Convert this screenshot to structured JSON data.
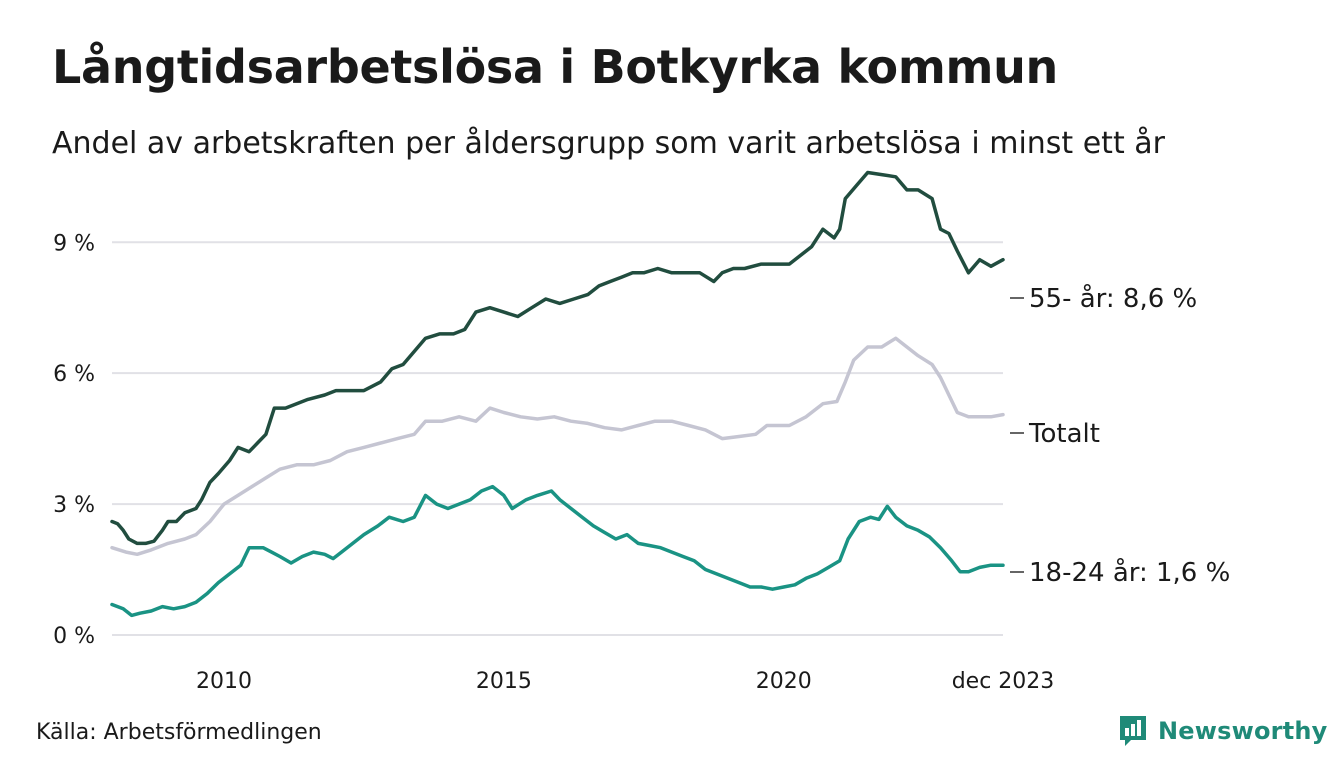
{
  "header": {
    "title": "Långtidsarbetslösa i Botkyrka kommun",
    "subtitle": "Andel av arbetskraften per åldersgrupp som varit arbetslösa i minst ett år"
  },
  "footer": {
    "source": "Källa: Arbetsförmedlingen",
    "brand": "Newsworthy"
  },
  "chart_data": {
    "type": "line",
    "title": "Långtidsarbetslösa i Botkyrka kommun",
    "subtitle": "Andel av arbetskraften per åldersgrupp som varit arbetslösa i minst ett år",
    "x_range": [
      2008.0,
      2023.917
    ],
    "xticks": [
      {
        "value": 2010,
        "label": "2010"
      },
      {
        "value": 2015,
        "label": "2015"
      },
      {
        "value": 2020,
        "label": "2020"
      },
      {
        "value": 2023.917,
        "label": "dec 2023"
      }
    ],
    "ylim": [
      0,
      11
    ],
    "yticks": [
      {
        "value": 0,
        "label": "0 %"
      },
      {
        "value": 3,
        "label": "3 %"
      },
      {
        "value": 6,
        "label": "6 %"
      },
      {
        "value": 9,
        "label": "9 %"
      }
    ],
    "grid": true,
    "series": [
      {
        "name": "55- år",
        "label": "55- år: 8,6 %",
        "color": "#214d3f",
        "points": [
          [
            2008.0,
            2.6
          ],
          [
            2008.1,
            2.55
          ],
          [
            2008.2,
            2.4
          ],
          [
            2008.3,
            2.2
          ],
          [
            2008.45,
            2.1
          ],
          [
            2008.6,
            2.1
          ],
          [
            2008.75,
            2.15
          ],
          [
            2008.9,
            2.4
          ],
          [
            2009.0,
            2.6
          ],
          [
            2009.15,
            2.6
          ],
          [
            2009.3,
            2.8
          ],
          [
            2009.5,
            2.9
          ],
          [
            2009.6,
            3.1
          ],
          [
            2009.75,
            3.5
          ],
          [
            2009.9,
            3.7
          ],
          [
            2010.1,
            4.0
          ],
          [
            2010.25,
            4.3
          ],
          [
            2010.45,
            4.2
          ],
          [
            2010.6,
            4.4
          ],
          [
            2010.75,
            4.6
          ],
          [
            2010.9,
            5.2
          ],
          [
            2011.1,
            5.2
          ],
          [
            2011.3,
            5.3
          ],
          [
            2011.5,
            5.4
          ],
          [
            2011.8,
            5.5
          ],
          [
            2012.0,
            5.6
          ],
          [
            2012.2,
            5.6
          ],
          [
            2012.5,
            5.6
          ],
          [
            2012.8,
            5.8
          ],
          [
            2013.0,
            6.1
          ],
          [
            2013.2,
            6.2
          ],
          [
            2013.4,
            6.5
          ],
          [
            2013.6,
            6.8
          ],
          [
            2013.85,
            6.9
          ],
          [
            2014.1,
            6.9
          ],
          [
            2014.3,
            7.0
          ],
          [
            2014.5,
            7.4
          ],
          [
            2014.75,
            7.5
          ],
          [
            2015.0,
            7.4
          ],
          [
            2015.25,
            7.3
          ],
          [
            2015.5,
            7.5
          ],
          [
            2015.75,
            7.7
          ],
          [
            2016.0,
            7.6
          ],
          [
            2016.25,
            7.7
          ],
          [
            2016.5,
            7.8
          ],
          [
            2016.7,
            8.0
          ],
          [
            2016.9,
            8.1
          ],
          [
            2017.1,
            8.2
          ],
          [
            2017.3,
            8.3
          ],
          [
            2017.5,
            8.3
          ],
          [
            2017.75,
            8.4
          ],
          [
            2018.0,
            8.3
          ],
          [
            2018.2,
            8.3
          ],
          [
            2018.5,
            8.3
          ],
          [
            2018.75,
            8.1
          ],
          [
            2018.9,
            8.3
          ],
          [
            2019.1,
            8.4
          ],
          [
            2019.3,
            8.4
          ],
          [
            2019.6,
            8.5
          ],
          [
            2019.9,
            8.5
          ],
          [
            2020.1,
            8.5
          ],
          [
            2020.3,
            8.7
          ],
          [
            2020.5,
            8.9
          ],
          [
            2020.7,
            9.3
          ],
          [
            2020.9,
            9.1
          ],
          [
            2021.0,
            9.3
          ],
          [
            2021.1,
            10.0
          ],
          [
            2021.3,
            10.3
          ],
          [
            2021.5,
            10.6
          ],
          [
            2021.75,
            10.55
          ],
          [
            2022.0,
            10.5
          ],
          [
            2022.2,
            10.2
          ],
          [
            2022.4,
            10.2
          ],
          [
            2022.65,
            10.0
          ],
          [
            2022.8,
            9.3
          ],
          [
            2022.95,
            9.2
          ],
          [
            2023.1,
            8.8
          ],
          [
            2023.3,
            8.3
          ],
          [
            2023.5,
            8.6
          ],
          [
            2023.7,
            8.45
          ],
          [
            2023.917,
            8.6
          ]
        ]
      },
      {
        "name": "Totalt",
        "label": "Totalt",
        "color": "#c5c5d2",
        "points": [
          [
            2008.0,
            2.0
          ],
          [
            2008.25,
            1.9
          ],
          [
            2008.45,
            1.85
          ],
          [
            2008.7,
            1.95
          ],
          [
            2009.0,
            2.1
          ],
          [
            2009.3,
            2.2
          ],
          [
            2009.5,
            2.3
          ],
          [
            2009.75,
            2.6
          ],
          [
            2010.0,
            3.0
          ],
          [
            2010.25,
            3.2
          ],
          [
            2010.5,
            3.4
          ],
          [
            2010.75,
            3.6
          ],
          [
            2011.0,
            3.8
          ],
          [
            2011.3,
            3.9
          ],
          [
            2011.6,
            3.9
          ],
          [
            2011.9,
            4.0
          ],
          [
            2012.2,
            4.2
          ],
          [
            2012.5,
            4.3
          ],
          [
            2012.8,
            4.4
          ],
          [
            2013.1,
            4.5
          ],
          [
            2013.4,
            4.6
          ],
          [
            2013.6,
            4.9
          ],
          [
            2013.9,
            4.9
          ],
          [
            2014.2,
            5.0
          ],
          [
            2014.5,
            4.9
          ],
          [
            2014.75,
            5.2
          ],
          [
            2015.0,
            5.1
          ],
          [
            2015.3,
            5.0
          ],
          [
            2015.6,
            4.95
          ],
          [
            2015.9,
            5.0
          ],
          [
            2016.2,
            4.9
          ],
          [
            2016.5,
            4.85
          ],
          [
            2016.8,
            4.75
          ],
          [
            2017.1,
            4.7
          ],
          [
            2017.4,
            4.8
          ],
          [
            2017.7,
            4.9
          ],
          [
            2018.0,
            4.9
          ],
          [
            2018.3,
            4.8
          ],
          [
            2018.6,
            4.7
          ],
          [
            2018.9,
            4.5
          ],
          [
            2019.2,
            4.55
          ],
          [
            2019.5,
            4.6
          ],
          [
            2019.7,
            4.8
          ],
          [
            2019.9,
            4.8
          ],
          [
            2020.1,
            4.8
          ],
          [
            2020.4,
            5.0
          ],
          [
            2020.7,
            5.3
          ],
          [
            2020.95,
            5.35
          ],
          [
            2021.1,
            5.8
          ],
          [
            2021.25,
            6.3
          ],
          [
            2021.5,
            6.6
          ],
          [
            2021.75,
            6.6
          ],
          [
            2022.0,
            6.8
          ],
          [
            2022.2,
            6.6
          ],
          [
            2022.4,
            6.4
          ],
          [
            2022.65,
            6.2
          ],
          [
            2022.8,
            5.9
          ],
          [
            2022.95,
            5.5
          ],
          [
            2023.1,
            5.1
          ],
          [
            2023.3,
            5.0
          ],
          [
            2023.5,
            5.0
          ],
          [
            2023.7,
            5.0
          ],
          [
            2023.917,
            5.05
          ]
        ]
      },
      {
        "name": "18-24 år",
        "label": "18-24 år: 1,6 %",
        "color": "#1a9384",
        "points": [
          [
            2008.0,
            0.7
          ],
          [
            2008.2,
            0.6
          ],
          [
            2008.35,
            0.45
          ],
          [
            2008.5,
            0.5
          ],
          [
            2008.7,
            0.55
          ],
          [
            2008.9,
            0.65
          ],
          [
            2009.1,
            0.6
          ],
          [
            2009.3,
            0.65
          ],
          [
            2009.5,
            0.75
          ],
          [
            2009.7,
            0.95
          ],
          [
            2009.9,
            1.2
          ],
          [
            2010.1,
            1.4
          ],
          [
            2010.3,
            1.6
          ],
          [
            2010.45,
            2.0
          ],
          [
            2010.7,
            2.0
          ],
          [
            2010.85,
            1.9
          ],
          [
            2011.0,
            1.8
          ],
          [
            2011.2,
            1.65
          ],
          [
            2011.4,
            1.8
          ],
          [
            2011.6,
            1.9
          ],
          [
            2011.8,
            1.85
          ],
          [
            2011.95,
            1.75
          ],
          [
            2012.1,
            1.9
          ],
          [
            2012.3,
            2.1
          ],
          [
            2012.5,
            2.3
          ],
          [
            2012.75,
            2.5
          ],
          [
            2012.95,
            2.7
          ],
          [
            2013.2,
            2.6
          ],
          [
            2013.4,
            2.7
          ],
          [
            2013.6,
            3.2
          ],
          [
            2013.8,
            3.0
          ],
          [
            2014.0,
            2.9
          ],
          [
            2014.2,
            3.0
          ],
          [
            2014.4,
            3.1
          ],
          [
            2014.6,
            3.3
          ],
          [
            2014.8,
            3.4
          ],
          [
            2015.0,
            3.2
          ],
          [
            2015.15,
            2.9
          ],
          [
            2015.4,
            3.1
          ],
          [
            2015.6,
            3.2
          ],
          [
            2015.85,
            3.3
          ],
          [
            2016.0,
            3.1
          ],
          [
            2016.2,
            2.9
          ],
          [
            2016.4,
            2.7
          ],
          [
            2016.6,
            2.5
          ],
          [
            2016.8,
            2.35
          ],
          [
            2017.0,
            2.2
          ],
          [
            2017.2,
            2.3
          ],
          [
            2017.4,
            2.1
          ],
          [
            2017.6,
            2.05
          ],
          [
            2017.8,
            2.0
          ],
          [
            2018.0,
            1.9
          ],
          [
            2018.2,
            1.8
          ],
          [
            2018.4,
            1.7
          ],
          [
            2018.6,
            1.5
          ],
          [
            2018.8,
            1.4
          ],
          [
            2019.0,
            1.3
          ],
          [
            2019.2,
            1.2
          ],
          [
            2019.4,
            1.1
          ],
          [
            2019.6,
            1.1
          ],
          [
            2019.8,
            1.05
          ],
          [
            2020.0,
            1.1
          ],
          [
            2020.2,
            1.15
          ],
          [
            2020.4,
            1.3
          ],
          [
            2020.6,
            1.4
          ],
          [
            2020.8,
            1.55
          ],
          [
            2021.0,
            1.7
          ],
          [
            2021.15,
            2.2
          ],
          [
            2021.35,
            2.6
          ],
          [
            2021.55,
            2.7
          ],
          [
            2021.7,
            2.65
          ],
          [
            2021.85,
            2.95
          ],
          [
            2022.0,
            2.7
          ],
          [
            2022.2,
            2.5
          ],
          [
            2022.4,
            2.4
          ],
          [
            2022.6,
            2.25
          ],
          [
            2022.8,
            2.0
          ],
          [
            2023.0,
            1.7
          ],
          [
            2023.15,
            1.45
          ],
          [
            2023.3,
            1.45
          ],
          [
            2023.5,
            1.55
          ],
          [
            2023.7,
            1.6
          ],
          [
            2023.917,
            1.6
          ]
        ]
      }
    ]
  }
}
